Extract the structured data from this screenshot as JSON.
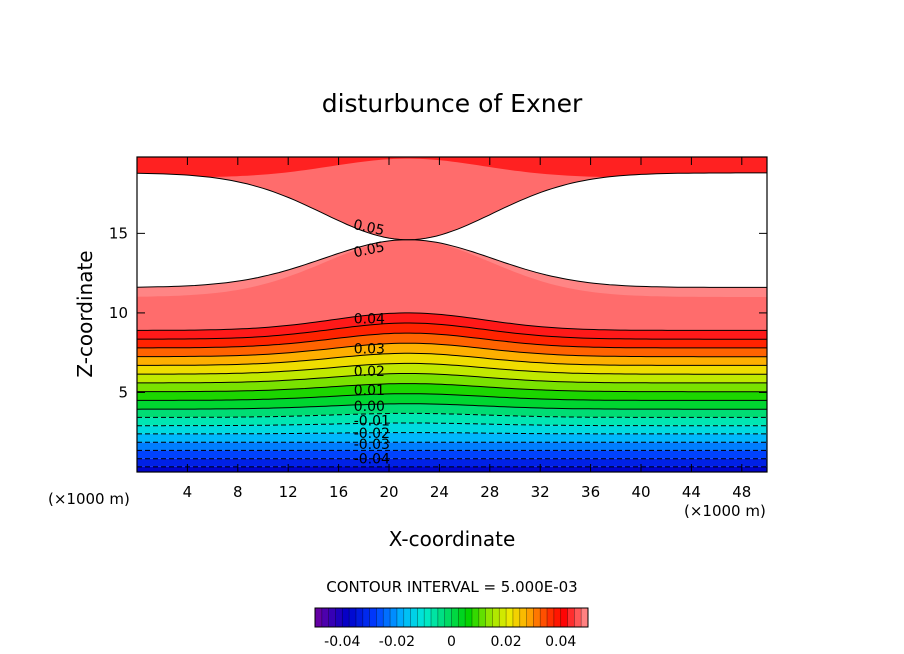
{
  "chart_data": {
    "type": "contour",
    "title": "disturbunce of Exner",
    "xlabel": "X-coordinate",
    "ylabel": "Z-coordinate",
    "x_unit_left": "(×1000 m)",
    "x_unit_right": "(×1000 m)",
    "xlim": [
      0,
      50
    ],
    "ylim": [
      0,
      19.8
    ],
    "x_ticks": [
      4,
      8,
      12,
      16,
      20,
      24,
      28,
      32,
      36,
      40,
      44,
      48
    ],
    "y_ticks": [
      5,
      10,
      15
    ],
    "contour_interval_text": "CONTOUR INTERVAL = 5.000E-03",
    "levels": [
      -0.04,
      -0.035,
      -0.03,
      -0.025,
      -0.02,
      -0.015,
      -0.01,
      -0.005,
      0.0,
      0.005,
      0.01,
      0.015,
      0.02,
      0.025,
      0.03,
      0.035,
      0.04,
      0.045,
      0.05
    ],
    "level_label_values": [
      -0.04,
      -0.03,
      -0.02,
      -0.01,
      0.0,
      0.01,
      0.02,
      0.03,
      0.04,
      0.05,
      0.05
    ],
    "contour_labels": [
      {
        "text": "0.05",
        "x": 17.2,
        "z": 15.6,
        "rotate": 12
      },
      {
        "text": "0.05",
        "x": 17.2,
        "z": 13.8,
        "rotate": -12
      },
      {
        "text": "0.04",
        "x": 17.2,
        "z": 9.65,
        "rotate": 0
      },
      {
        "text": "0.03",
        "x": 17.2,
        "z": 7.75,
        "rotate": 0
      },
      {
        "text": "0.02",
        "x": 17.2,
        "z": 6.35,
        "rotate": 0
      },
      {
        "text": "0.01",
        "x": 17.2,
        "z": 5.15,
        "rotate": 0
      },
      {
        "text": "0.00",
        "x": 17.2,
        "z": 4.15,
        "rotate": 0
      },
      {
        "text": "-0.01",
        "x": 17.2,
        "z": 3.25,
        "rotate": 0
      },
      {
        "text": "-0.02",
        "x": 17.2,
        "z": 2.45,
        "rotate": 0
      },
      {
        "text": "-0.03",
        "x": 17.2,
        "z": 1.75,
        "rotate": 0
      },
      {
        "text": "-0.04",
        "x": 17.2,
        "z": 0.85,
        "rotate": 0
      }
    ],
    "colorbar": {
      "range": [
        -0.05,
        0.05
      ],
      "tick_labels": [
        "-0.04",
        "-0.02",
        "0",
        "0.02",
        "0.04"
      ],
      "tick_values": [
        -0.04,
        -0.02,
        0,
        0.02,
        0.04
      ]
    },
    "colors": {
      "max_red": "#ff0000",
      "min_purple": "#7000a0",
      "white": "#ffffff"
    }
  }
}
